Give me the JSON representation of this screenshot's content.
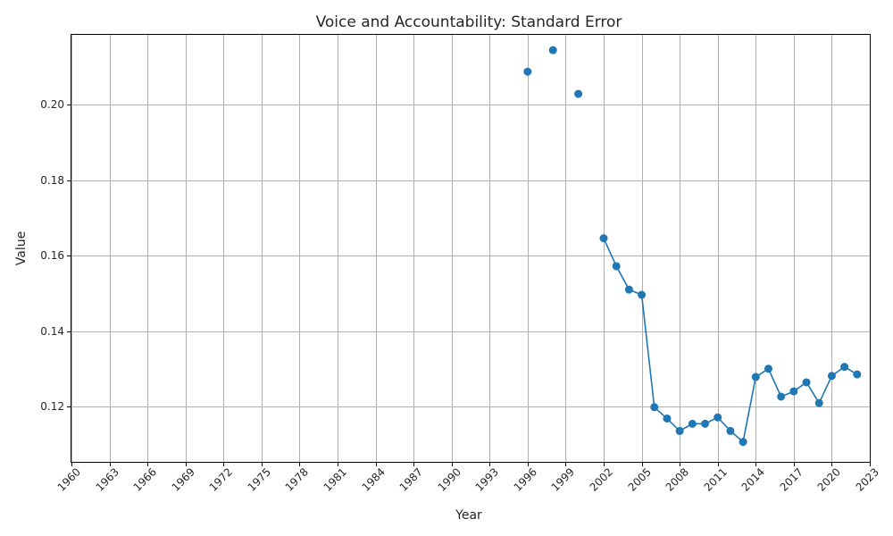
{
  "chart_data": {
    "type": "line",
    "title": "Voice and Accountability: Standard Error",
    "xlabel": "Year",
    "ylabel": "Value",
    "xlim": [
      1960,
      2023
    ],
    "ylim": [
      0.1053,
      0.2188
    ],
    "x_ticks": [
      "1960",
      "1963",
      "1966",
      "1969",
      "1972",
      "1975",
      "1978",
      "1981",
      "1984",
      "1987",
      "1990",
      "1993",
      "1996",
      "1999",
      "2002",
      "2005",
      "2008",
      "2011",
      "2014",
      "2017",
      "2020",
      "2023"
    ],
    "y_ticks": [
      "0.12",
      "0.14",
      "0.16",
      "0.18",
      "0.20"
    ],
    "grid": true,
    "color": "#1f77b4",
    "series": [
      {
        "x": [
          1996,
          1998,
          2000,
          2002,
          2003,
          2004,
          2005,
          2006,
          2007,
          2008,
          2009,
          2010,
          2011,
          2012,
          2013,
          2014,
          2015,
          2016,
          2017,
          2018,
          2019,
          2020,
          2021,
          2022
        ],
        "values": [
          0.2088,
          0.2145,
          0.2029,
          0.1646,
          0.1572,
          0.151,
          0.1496,
          0.1198,
          0.1168,
          0.1135,
          0.1154,
          0.1154,
          0.1171,
          0.1135,
          0.1106,
          0.1278,
          0.13,
          0.1226,
          0.124,
          0.1264,
          0.1209,
          0.1281,
          0.1305,
          0.1285
        ]
      }
    ]
  }
}
